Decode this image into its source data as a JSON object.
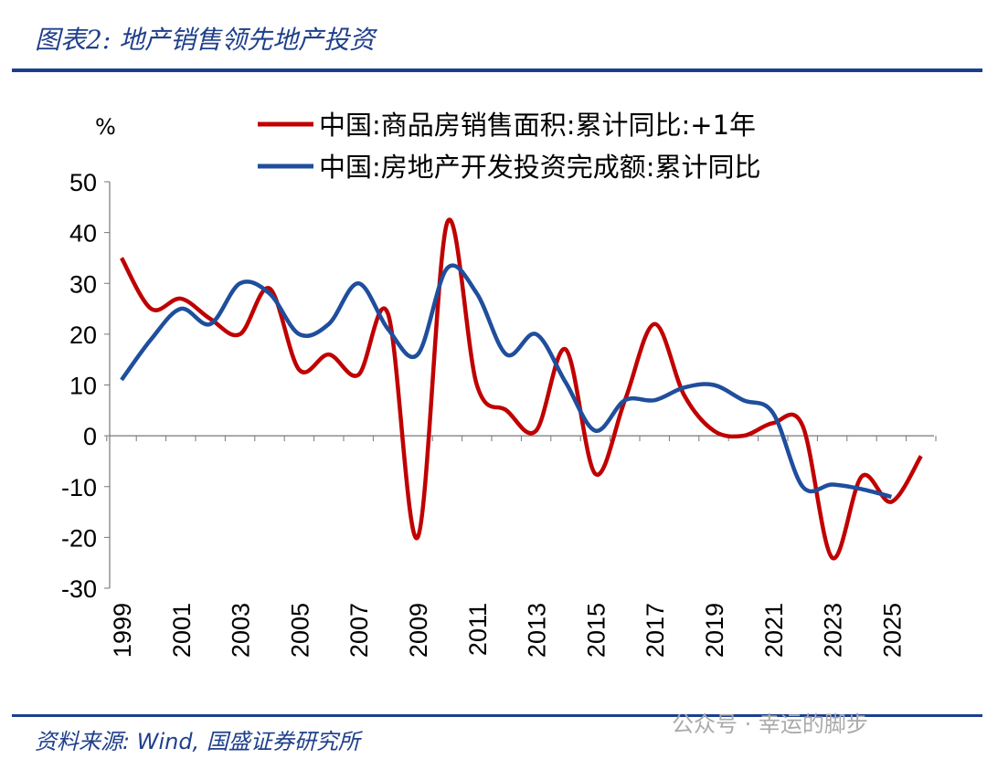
{
  "header": {
    "title": "图表2:  地产销售领先地产投资"
  },
  "footer": {
    "source": "资料来源:  Wind,  国盛证券研究所",
    "watermark": "公众号 · 幸运的脚步"
  },
  "chart_data": {
    "type": "line",
    "ylabel": "%",
    "ylim": [
      -30,
      50
    ],
    "yticks": [
      50,
      40,
      30,
      20,
      10,
      0,
      -10,
      -20,
      -30
    ],
    "xticks": [
      "1999",
      "2001",
      "2003",
      "2005",
      "2007",
      "2009",
      "2011",
      "2013",
      "2015",
      "2017",
      "2019",
      "2021",
      "2023",
      "2025"
    ],
    "legend_position": "top",
    "grid": false,
    "series": [
      {
        "name": "中国:商品房销售面积:累计同比:+1年",
        "color": "#c00000",
        "x": [
          1999,
          2000,
          2001,
          2002,
          2003,
          2004,
          2005,
          2006,
          2007,
          2008,
          2009,
          2010,
          2011,
          2012,
          2013,
          2014,
          2015,
          2016,
          2017,
          2018,
          2019,
          2020,
          2021,
          2022,
          2023,
          2024,
          2025,
          2026
        ],
        "values": [
          35,
          25,
          27,
          23,
          20,
          29,
          13,
          16,
          12,
          24,
          -20,
          42,
          10,
          5,
          1,
          17,
          -7.5,
          7,
          22,
          8,
          1,
          0,
          2.5,
          2,
          -24,
          -8,
          -13,
          -4
        ]
      },
      {
        "name": "中国:房地产开发投资完成额:累计同比",
        "color": "#1f4e9c",
        "x": [
          1999,
          2000,
          2001,
          2002,
          2003,
          2004,
          2005,
          2006,
          2007,
          2008,
          2009,
          2010,
          2011,
          2012,
          2013,
          2014,
          2015,
          2016,
          2017,
          2018,
          2019,
          2020,
          2021,
          2022,
          2023,
          2024,
          2025
        ],
        "values": [
          11,
          19,
          25,
          22,
          30,
          28,
          20,
          22,
          30,
          21,
          16,
          33,
          28,
          16,
          20,
          10.5,
          1,
          7,
          7,
          9.5,
          10,
          7,
          4.5,
          -10,
          -9.6,
          -10.5,
          -12
        ]
      }
    ]
  }
}
